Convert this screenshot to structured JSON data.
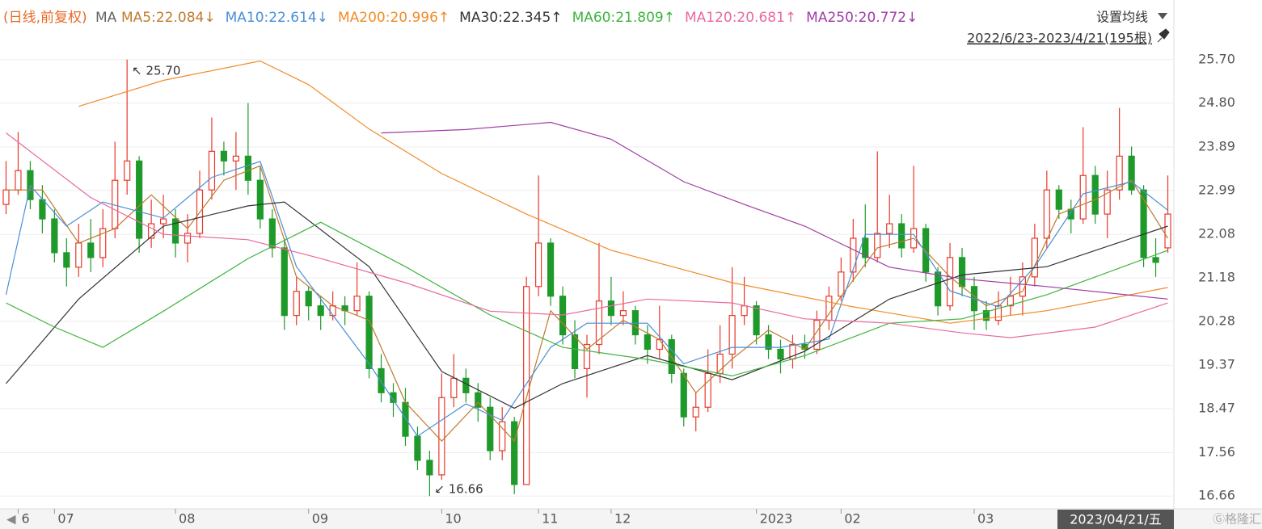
{
  "chart_data": {
    "type": "candlestick",
    "header": {
      "mode": "(日线,前复权)",
      "ma": "MA",
      "settings": "设置均线",
      "range": "2022/6/23-2023/4/21(195根)"
    },
    "cursor_label": "2023/04/21/五",
    "max_label": "↖ 25.70",
    "min_label": "↙ 16.66",
    "up_color": "#e8392b",
    "down_color": "#1f9a2a",
    "ylim": [
      16.43,
      25.93
    ],
    "yticks": [
      16.66,
      17.56,
      18.47,
      19.37,
      20.28,
      21.18,
      22.08,
      22.99,
      23.89,
      {
        "value": 24.8,
        "label": "24.80"
      },
      {
        "value": 25.7,
        "label": "25.70"
      }
    ],
    "grid": true,
    "categories": [
      null,
      "6",
      null,
      null,
      "07",
      null,
      null,
      null,
      null,
      null,
      null,
      null,
      null,
      null,
      "08",
      null,
      null,
      null,
      null,
      null,
      null,
      null,
      null,
      null,
      null,
      "09",
      null,
      null,
      null,
      null,
      null,
      null,
      null,
      null,
      null,
      null,
      "10",
      null,
      null,
      null,
      null,
      null,
      null,
      null,
      "11",
      null,
      null,
      null,
      null,
      null,
      "12",
      null,
      null,
      null,
      null,
      null,
      null,
      null,
      null,
      null,
      null,
      null,
      "2023",
      null,
      null,
      null,
      null,
      null,
      null,
      "02",
      null,
      null,
      null,
      null,
      null,
      null,
      null,
      null,
      null,
      null,
      "03",
      null,
      null,
      null,
      null,
      null,
      null,
      null,
      null,
      null,
      null,
      null,
      null,
      null,
      null,
      null,
      null,
      null
    ],
    "candles": [
      [
        22.7,
        23.6,
        22.5,
        23.0
      ],
      [
        23.0,
        24.2,
        22.9,
        23.4
      ],
      [
        23.4,
        23.6,
        22.6,
        22.8
      ],
      [
        22.8,
        23.1,
        22.1,
        22.4
      ],
      [
        22.4,
        22.6,
        21.5,
        21.7
      ],
      [
        21.7,
        22.0,
        21.0,
        21.4
      ],
      [
        21.4,
        22.3,
        21.2,
        21.9
      ],
      [
        21.9,
        22.4,
        21.3,
        21.6
      ],
      [
        21.6,
        22.6,
        21.4,
        22.2
      ],
      [
        22.2,
        24.0,
        22.0,
        23.2
      ],
      [
        23.2,
        25.7,
        22.9,
        23.6
      ],
      [
        23.6,
        23.7,
        21.7,
        22.0
      ],
      [
        22.0,
        22.8,
        21.8,
        22.3
      ],
      [
        22.3,
        22.9,
        22.0,
        22.4
      ],
      [
        22.4,
        22.6,
        21.6,
        21.9
      ],
      [
        21.9,
        22.5,
        21.5,
        22.1
      ],
      [
        22.1,
        23.4,
        22.0,
        23.0
      ],
      [
        23.0,
        24.5,
        22.8,
        23.8
      ],
      [
        23.8,
        24.0,
        23.3,
        23.6
      ],
      [
        23.6,
        24.2,
        23.0,
        23.7
      ],
      [
        23.7,
        24.8,
        22.9,
        23.2
      ],
      [
        23.2,
        23.5,
        22.2,
        22.4
      ],
      [
        22.4,
        22.6,
        21.6,
        21.8
      ],
      [
        21.8,
        22.0,
        20.1,
        20.4
      ],
      [
        20.4,
        21.2,
        20.2,
        20.9
      ],
      [
        20.9,
        21.0,
        20.3,
        20.6
      ],
      [
        20.6,
        20.8,
        20.1,
        20.4
      ],
      [
        20.4,
        20.9,
        20.3,
        20.6
      ],
      [
        20.6,
        20.8,
        20.2,
        20.5
      ],
      [
        20.5,
        21.5,
        20.4,
        20.8
      ],
      [
        20.8,
        20.9,
        19.1,
        19.3
      ],
      [
        19.3,
        19.6,
        18.6,
        18.8
      ],
      [
        18.8,
        19.0,
        18.3,
        18.6
      ],
      [
        18.6,
        18.9,
        17.7,
        17.9
      ],
      [
        17.9,
        18.1,
        17.2,
        17.4
      ],
      [
        17.4,
        17.6,
        16.66,
        17.1
      ],
      [
        17.1,
        19.2,
        17.0,
        18.7
      ],
      [
        18.7,
        19.6,
        18.5,
        19.1
      ],
      [
        19.1,
        19.3,
        18.6,
        18.8
      ],
      [
        18.8,
        19.0,
        18.2,
        18.5
      ],
      [
        18.5,
        18.7,
        17.4,
        17.6
      ],
      [
        17.6,
        18.5,
        17.4,
        18.2
      ],
      [
        18.2,
        18.3,
        16.7,
        16.9
      ],
      [
        16.9,
        21.2,
        16.9,
        21.0
      ],
      [
        21.0,
        23.3,
        20.8,
        21.9
      ],
      [
        21.9,
        22.0,
        20.6,
        20.8
      ],
      [
        20.8,
        21.0,
        19.8,
        20.0
      ],
      [
        20.0,
        20.3,
        19.1,
        19.3
      ],
      [
        19.3,
        20.0,
        18.7,
        19.8
      ],
      [
        19.8,
        21.9,
        19.6,
        20.7
      ],
      [
        20.7,
        21.2,
        20.2,
        20.4
      ],
      [
        20.4,
        20.9,
        20.2,
        20.5
      ],
      [
        20.5,
        20.6,
        19.8,
        20.0
      ],
      [
        20.0,
        20.2,
        19.4,
        19.7
      ],
      [
        19.7,
        20.6,
        19.5,
        19.9
      ],
      [
        19.9,
        20.0,
        19.0,
        19.2
      ],
      [
        19.2,
        19.3,
        18.1,
        18.3
      ],
      [
        18.3,
        18.8,
        18.0,
        18.5
      ],
      [
        18.5,
        19.7,
        18.4,
        19.2
      ],
      [
        19.2,
        20.2,
        19.0,
        19.6
      ],
      [
        19.6,
        21.4,
        19.3,
        20.4
      ],
      [
        20.4,
        21.2,
        20.2,
        20.6
      ],
      [
        20.6,
        20.7,
        19.8,
        20.0
      ],
      [
        20.0,
        20.2,
        19.5,
        19.7
      ],
      [
        19.7,
        19.9,
        19.2,
        19.5
      ],
      [
        19.5,
        20.0,
        19.3,
        19.8
      ],
      [
        19.8,
        20.0,
        19.5,
        19.7
      ],
      [
        19.7,
        20.5,
        19.6,
        20.3
      ],
      [
        20.3,
        21.0,
        20.1,
        20.8
      ],
      [
        20.8,
        21.6,
        20.7,
        21.3
      ],
      [
        21.3,
        22.4,
        21.1,
        22.0
      ],
      [
        22.0,
        22.7,
        21.4,
        21.6
      ],
      [
        21.6,
        23.8,
        21.5,
        22.1
      ],
      [
        22.1,
        22.9,
        21.8,
        22.3
      ],
      [
        22.3,
        22.5,
        21.6,
        21.8
      ],
      [
        21.8,
        23.5,
        21.7,
        22.2
      ],
      [
        22.2,
        22.3,
        21.1,
        21.3
      ],
      [
        21.3,
        21.4,
        20.4,
        20.6
      ],
      [
        20.6,
        21.9,
        20.5,
        21.6
      ],
      [
        21.6,
        21.8,
        20.8,
        21.0
      ],
      [
        21.0,
        21.2,
        20.1,
        20.5
      ],
      [
        20.5,
        20.7,
        20.1,
        20.3
      ],
      [
        20.3,
        20.9,
        20.2,
        20.6
      ],
      [
        20.6,
        21.2,
        20.4,
        20.8
      ],
      [
        20.8,
        21.5,
        20.4,
        21.2
      ],
      [
        21.2,
        22.3,
        21.0,
        22.0
      ],
      [
        22.0,
        23.4,
        21.8,
        23.0
      ],
      [
        23.0,
        23.1,
        22.4,
        22.6
      ],
      [
        22.6,
        22.8,
        22.1,
        22.4
      ],
      [
        22.4,
        24.3,
        22.3,
        23.3
      ],
      [
        23.3,
        23.5,
        22.3,
        22.5
      ],
      [
        22.5,
        23.4,
        22.0,
        23.0
      ],
      [
        23.0,
        24.7,
        22.8,
        23.7
      ],
      [
        23.7,
        23.9,
        22.9,
        23.0
      ],
      [
        23.0,
        23.1,
        21.4,
        21.6
      ],
      [
        21.6,
        22.0,
        21.2,
        21.5
      ],
      [
        21.8,
        23.3,
        21.7,
        22.5
      ]
    ],
    "series": [
      {
        "label": "MA5:22.084↓",
        "color": "#c07a2e",
        "x": [
          0,
          3,
          6,
          9,
          12,
          15,
          18,
          21,
          24,
          27,
          30,
          33,
          36,
          39,
          42,
          45,
          48,
          51,
          54,
          57,
          60,
          63,
          66,
          69,
          72,
          75,
          78,
          81,
          84,
          87,
          90,
          93,
          96
        ],
        "values": [
          23.0,
          23.0,
          21.9,
          22.2,
          22.9,
          22.2,
          23.2,
          23.5,
          21.2,
          20.6,
          20.3,
          18.6,
          17.8,
          18.6,
          17.8,
          20.5,
          19.7,
          20.3,
          19.9,
          18.8,
          19.5,
          20.1,
          19.7,
          20.8,
          21.8,
          22.0,
          21.2,
          20.6,
          20.9,
          22.5,
          22.8,
          23.2,
          22.0
        ]
      },
      {
        "label": "MA10:22.614↓",
        "color": "#4a8fd6",
        "x": [
          0,
          2,
          5,
          8,
          13,
          17,
          21,
          24,
          27,
          30,
          34,
          38,
          41,
          45,
          48,
          53,
          56,
          60,
          64,
          68,
          71,
          75,
          78,
          82,
          85,
          89,
          93,
          96
        ],
        "values": [
          20.83,
          23.09,
          22.25,
          22.75,
          22.42,
          23.26,
          23.59,
          21.41,
          20.41,
          19.4,
          17.9,
          18.57,
          18.23,
          19.74,
          20.24,
          20.24,
          19.4,
          19.74,
          19.74,
          19.91,
          22.08,
          22.08,
          20.91,
          20.58,
          21.41,
          22.92,
          23.17,
          22.58
        ]
      },
      {
        "label": "MA200:20.996↑",
        "color": "#f08c2a",
        "x": [
          6,
          13,
          21,
          25,
          30,
          36,
          43,
          50,
          60,
          70,
          78,
          86,
          96
        ],
        "values": [
          24.73,
          25.27,
          25.67,
          25.18,
          24.26,
          23.34,
          22.5,
          21.75,
          21.08,
          20.58,
          20.24,
          20.5,
          20.98
        ]
      },
      {
        "label": "MA30:22.345↑",
        "color": "#333333",
        "x": [
          0,
          6,
          13,
          20,
          23,
          30,
          36,
          42,
          46,
          53,
          60,
          66,
          73,
          79,
          86,
          96
        ],
        "values": [
          18.99,
          20.74,
          22.25,
          22.67,
          22.75,
          21.41,
          19.24,
          18.48,
          18.99,
          19.57,
          19.07,
          19.66,
          20.74,
          21.24,
          21.41,
          22.25
        ]
      },
      {
        "label": "MA60:21.809↑",
        "color": "#3db43d",
        "x": [
          0,
          4,
          8,
          13,
          20,
          26,
          33,
          40,
          46,
          53,
          60,
          66,
          73,
          79,
          86,
          96
        ],
        "values": [
          20.66,
          20.16,
          19.74,
          20.49,
          21.58,
          22.33,
          21.41,
          20.41,
          19.74,
          19.49,
          19.15,
          19.57,
          20.24,
          20.33,
          20.83,
          21.75
        ]
      },
      {
        "label": "MA120:20.681↑",
        "color": "#e86aa0",
        "x": [
          0,
          7,
          13,
          20,
          26,
          33,
          40,
          46,
          53,
          60,
          66,
          73,
          79,
          83,
          90,
          96
        ],
        "values": [
          24.18,
          22.84,
          22.08,
          21.97,
          21.58,
          21.08,
          20.49,
          20.41,
          20.74,
          20.66,
          20.33,
          20.24,
          20.04,
          19.94,
          20.16,
          20.66
        ]
      },
      {
        "label": "MA250:20.772↓",
        "color": "#a03ca6",
        "x": [
          31,
          38,
          45,
          50,
          56,
          61,
          66,
          73,
          79,
          86,
          96
        ],
        "values": [
          24.18,
          24.25,
          24.4,
          24.05,
          23.17,
          22.7,
          22.25,
          21.4,
          21.16,
          21.0,
          20.74
        ]
      }
    ]
  }
}
